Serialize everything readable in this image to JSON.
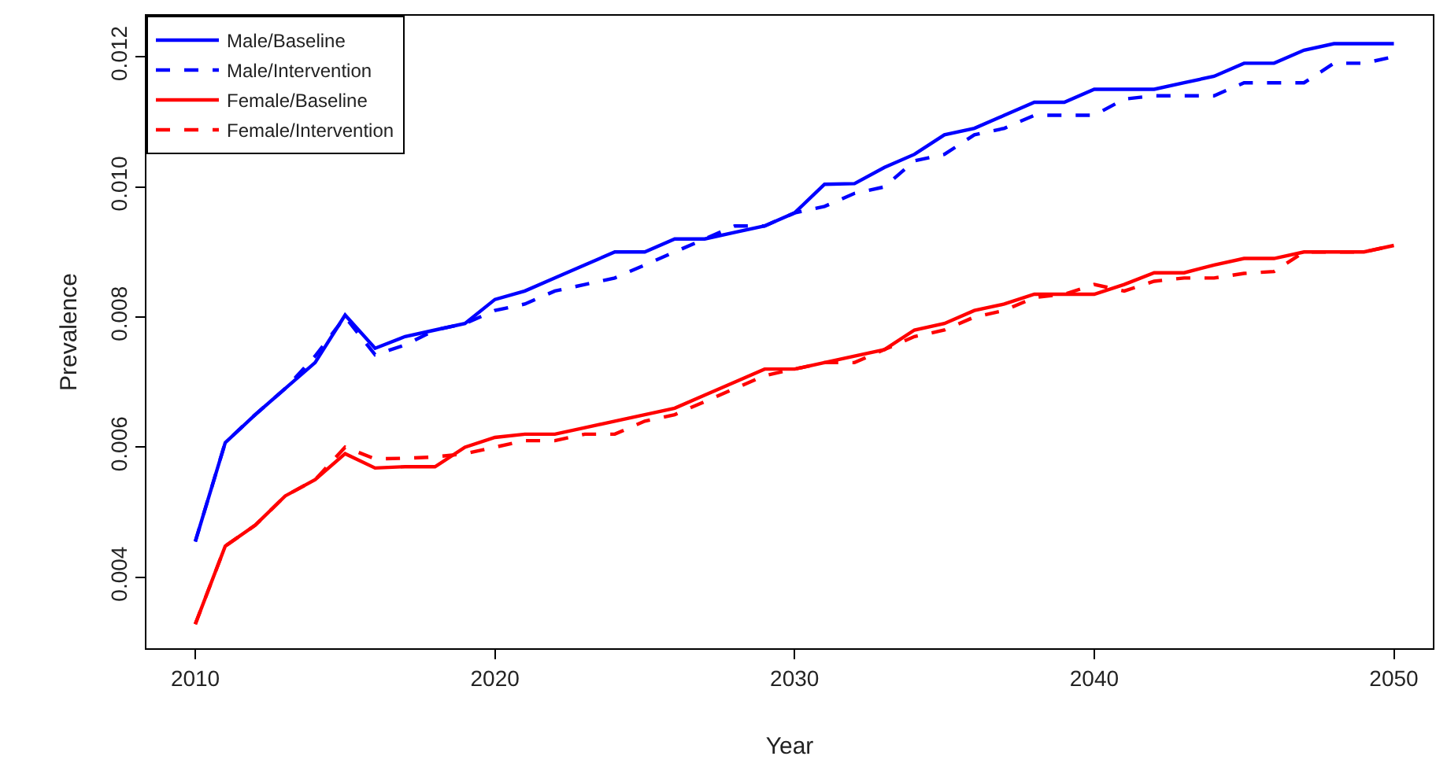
{
  "chart_data": {
    "type": "line",
    "xlabel": "Year",
    "ylabel": "Prevalence",
    "x": [
      2010,
      2011,
      2012,
      2013,
      2014,
      2015,
      2016,
      2017,
      2018,
      2019,
      2020,
      2021,
      2022,
      2023,
      2024,
      2025,
      2026,
      2027,
      2028,
      2029,
      2030,
      2031,
      2032,
      2033,
      2034,
      2035,
      2036,
      2037,
      2038,
      2039,
      2040,
      2041,
      2042,
      2043,
      2044,
      2045,
      2046,
      2047,
      2048,
      2049,
      2050
    ],
    "series": [
      {
        "name": "Male/Baseline",
        "color": "#0000ff",
        "line_style": "solid",
        "values": [
          0.00455,
          0.00607,
          0.0065,
          0.0069,
          0.0073,
          0.00803,
          0.00752,
          0.0077,
          0.0078,
          0.0079,
          0.00827,
          0.0084,
          0.0086,
          0.0088,
          0.009,
          0.009,
          0.0092,
          0.0092,
          0.0093,
          0.0094,
          0.0096,
          0.01004,
          0.01005,
          0.0103,
          0.0105,
          0.0108,
          0.0109,
          0.0111,
          0.0113,
          0.0113,
          0.0115,
          0.0115,
          0.0115,
          0.0116,
          0.0117,
          0.0119,
          0.0119,
          0.0121,
          0.0122,
          0.0122,
          0.0122
        ]
      },
      {
        "name": "Male/Intervention",
        "color": "#0000ff",
        "line_style": "dashed",
        "values": [
          0.00455,
          0.00607,
          0.0065,
          0.0069,
          0.0074,
          0.008,
          0.00742,
          0.00757,
          0.0078,
          0.0079,
          0.0081,
          0.0082,
          0.0084,
          0.0085,
          0.0086,
          0.0088,
          0.009,
          0.0092,
          0.0094,
          0.0094,
          0.0096,
          0.0097,
          0.0099,
          0.01,
          0.0104,
          0.0105,
          0.0108,
          0.0109,
          0.0111,
          0.0111,
          0.0111,
          0.01135,
          0.0114,
          0.0114,
          0.0114,
          0.0116,
          0.0116,
          0.0116,
          0.0119,
          0.0119,
          0.012
        ]
      },
      {
        "name": "Female/Baseline",
        "color": "#ff0000",
        "line_style": "solid",
        "values": [
          0.00328,
          0.00448,
          0.0048,
          0.00525,
          0.0055,
          0.0059,
          0.00568,
          0.0057,
          0.0057,
          0.006,
          0.00615,
          0.0062,
          0.0062,
          0.0063,
          0.0064,
          0.0065,
          0.0066,
          0.0068,
          0.007,
          0.0072,
          0.0072,
          0.0073,
          0.0074,
          0.0075,
          0.0078,
          0.0079,
          0.0081,
          0.0082,
          0.00835,
          0.00835,
          0.00835,
          0.0085,
          0.00868,
          0.00868,
          0.0088,
          0.0089,
          0.0089,
          0.009,
          0.009,
          0.009,
          0.0091
        ]
      },
      {
        "name": "Female/Intervention",
        "color": "#ff0000",
        "line_style": "dashed",
        "values": [
          0.00328,
          0.00448,
          0.0048,
          0.00525,
          0.0055,
          0.006,
          0.00582,
          0.00583,
          0.00585,
          0.0059,
          0.006,
          0.0061,
          0.0061,
          0.0062,
          0.0062,
          0.0064,
          0.0065,
          0.0067,
          0.0069,
          0.0071,
          0.0072,
          0.0073,
          0.0073,
          0.0075,
          0.0077,
          0.0078,
          0.008,
          0.0081,
          0.0083,
          0.00835,
          0.0085,
          0.0084,
          0.00855,
          0.0086,
          0.0086,
          0.00867,
          0.0087,
          0.009,
          0.009,
          0.009,
          0.0091
        ]
      }
    ],
    "xlim": [
      2008.37,
      2051.3
    ],
    "xticks": [
      2010,
      2020,
      2030,
      2040,
      2050
    ],
    "ylim": [
      0.00291,
      0.01263
    ],
    "yticks": [
      {
        "value": 0.004,
        "label": "0.004"
      },
      {
        "value": 0.006,
        "label": "0.006"
      },
      {
        "value": 0.008,
        "label": "0.008"
      },
      {
        "value": 0.01,
        "label": "0.010"
      },
      {
        "value": 0.012,
        "label": "0.012"
      }
    ],
    "legend": "top left",
    "marker": "none"
  }
}
